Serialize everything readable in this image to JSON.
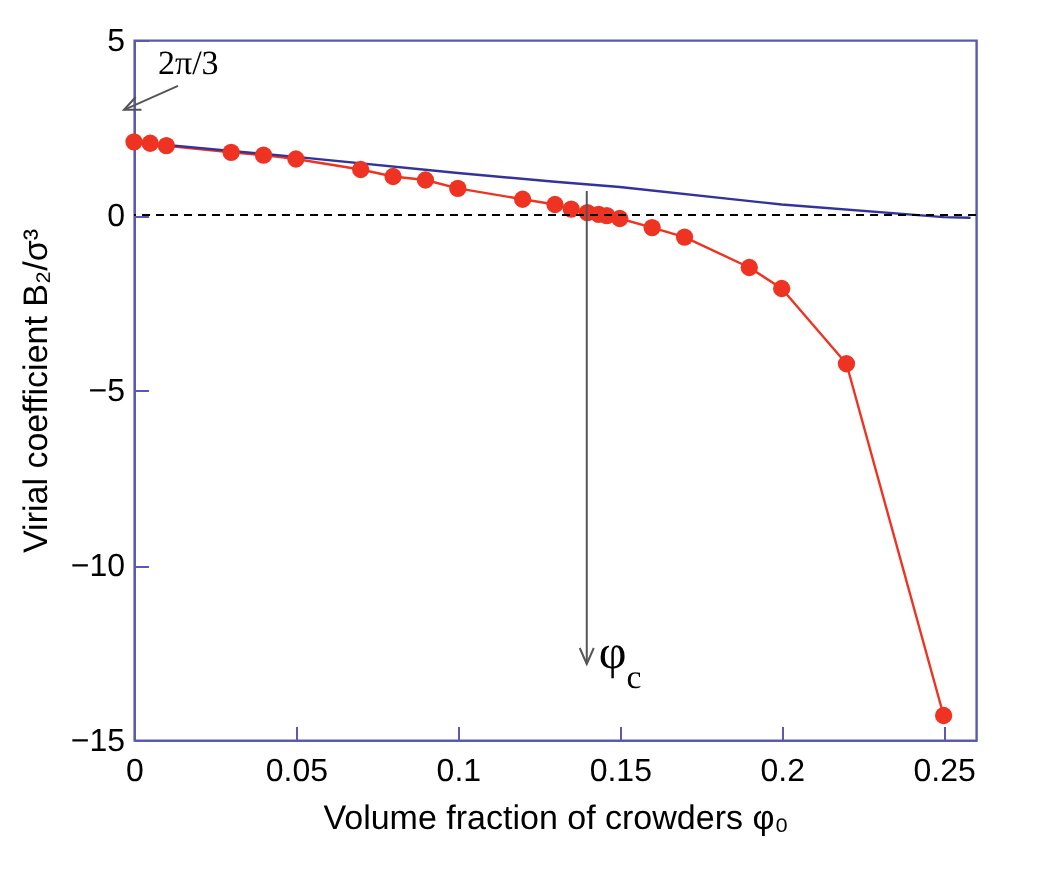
{
  "chart_data": {
    "type": "line",
    "xlabel": "Volume fraction of crowders φ₀",
    "ylabel": "Virial coefficient B₂/σ³",
    "xlim": [
      0,
      0.26
    ],
    "ylim": [
      -15,
      5
    ],
    "xticks": [
      0,
      0.05,
      0.1,
      0.15,
      0.2,
      0.25
    ],
    "yticks": [
      -15,
      -10,
      -5,
      0,
      5
    ],
    "grid": false,
    "series": [
      {
        "color": "#ee3322",
        "marker": "circle",
        "x": [
          0,
          0.005,
          0.01,
          0.03,
          0.04,
          0.05,
          0.07,
          0.08,
          0.09,
          0.1,
          0.12,
          0.13,
          0.135,
          0.14,
          0.1435,
          0.146,
          0.15,
          0.16,
          0.17,
          0.19,
          0.2,
          0.22,
          0.25
        ],
        "values": [
          2.09,
          2.05,
          1.98,
          1.79,
          1.71,
          1.6,
          1.3,
          1.1,
          1.0,
          0.76,
          0.45,
          0.3,
          0.17,
          0.07,
          0.02,
          -0.02,
          -0.1,
          -0.36,
          -0.63,
          -1.5,
          -2.1,
          -4.25,
          -14.3
        ]
      },
      {
        "color": "#333399",
        "marker": "none",
        "x": [
          0,
          0.05,
          0.1,
          0.13,
          0.15,
          0.2,
          0.25,
          0.258
        ],
        "values": [
          2.09,
          1.66,
          1.2,
          0.95,
          0.8,
          0.3,
          -0.06,
          -0.08
        ]
      }
    ],
    "ref_lines": [
      {
        "axis": "y",
        "value": 0,
        "color": "#000000",
        "line_style": "dashed"
      }
    ],
    "annotations": [
      {
        "text": "2π/3",
        "x": 0,
        "y": 2.09
      },
      "φ$_{c}$"
    ]
  }
}
